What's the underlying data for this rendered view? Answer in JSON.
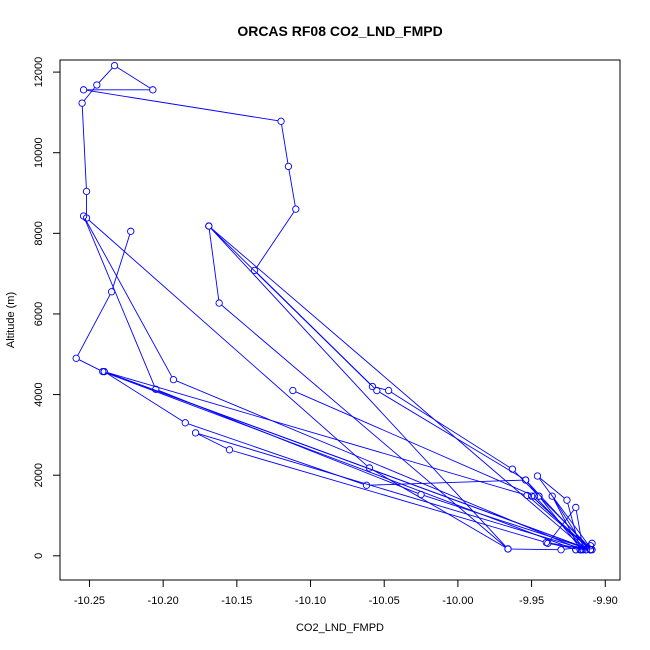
{
  "chart_data": {
    "type": "line",
    "title": "ORCAS RF08 CO2_LND_FMPD",
    "xlabel": "CO2_LND_FMPD",
    "ylabel": "Altitude (m)",
    "xlim": [
      -10.27,
      -9.89
    ],
    "ylim": [
      -600,
      12300
    ],
    "xticks": [
      -10.25,
      -10.2,
      -10.15,
      -10.1,
      -10.05,
      -10.0,
      -9.95,
      -9.9
    ],
    "xtick_labels": [
      "-10.25",
      "-10.20",
      "-10.15",
      "-10.10",
      "-10.05",
      "-10.00",
      "-9.95",
      "-9.90"
    ],
    "yticks": [
      0,
      2000,
      4000,
      6000,
      8000,
      10000,
      12000
    ],
    "ytick_labels": [
      "0",
      "2000",
      "4000",
      "6000",
      "8000",
      "10000",
      "12000"
    ],
    "grid": false,
    "color": "#0000ff",
    "series": [
      {
        "points": [
          [
            -10.222,
            8050
          ],
          [
            -10.235,
            6550
          ],
          [
            -10.259,
            4900
          ],
          [
            -10.241,
            4570
          ],
          [
            -9.92,
            150
          ],
          [
            -9.909,
            310
          ],
          [
            -9.915,
            150
          ],
          [
            -9.92,
            1200
          ],
          [
            -9.939,
            310
          ],
          [
            -9.917,
            150
          ],
          [
            -9.926,
            1380
          ],
          [
            -9.946,
            1980
          ],
          [
            -9.909,
            150
          ],
          [
            -9.945,
            1480
          ],
          [
            -9.954,
            1880
          ],
          [
            -10.062,
            1750
          ],
          [
            -10.185,
            3300
          ],
          [
            -10.24,
            4570
          ],
          [
            -9.91,
            150
          ],
          [
            -9.94,
            330
          ],
          [
            -10.155,
            2630
          ],
          [
            -10.178,
            3050
          ],
          [
            -9.913,
            150
          ],
          [
            -9.936,
            1480
          ],
          [
            -9.917,
            150
          ],
          [
            -9.91,
            150
          ],
          [
            -9.953,
            1500
          ],
          [
            -10.24,
            4570
          ],
          [
            -9.91,
            150
          ],
          [
            -10.025,
            1520
          ],
          [
            -10.205,
            4130
          ],
          [
            -10.254,
            8430
          ],
          [
            -10.193,
            4370
          ],
          [
            -9.916,
            150
          ],
          [
            -9.945,
            1480
          ],
          [
            -9.963,
            2150
          ],
          [
            -10.047,
            4100
          ],
          [
            -10.058,
            4200
          ],
          [
            -10.169,
            8180
          ],
          [
            -9.966,
            170
          ],
          [
            -10.06,
            2180
          ],
          [
            -10.252,
            8380
          ],
          [
            -10.252,
            9040
          ],
          [
            -10.255,
            11230
          ],
          [
            -10.245,
            11680
          ],
          [
            -10.233,
            12160
          ],
          [
            -10.207,
            11560
          ],
          [
            -10.254,
            11560
          ],
          [
            -10.12,
            10780
          ],
          [
            -10.115,
            9660
          ],
          [
            -10.11,
            8600
          ],
          [
            -10.138,
            7080
          ],
          [
            -10.055,
            4100
          ],
          [
            -9.954,
            1880
          ],
          [
            -9.91,
            150
          ],
          [
            -9.95,
            1480
          ],
          [
            -9.91,
            150
          ],
          [
            -9.92,
            150
          ],
          [
            -9.91,
            250
          ],
          [
            -9.93,
            150
          ],
          [
            -9.966,
            170
          ],
          [
            -10.162,
            6270
          ],
          [
            -10.169,
            8180
          ],
          [
            -9.913,
            150
          ],
          [
            -9.948,
            1480
          ],
          [
            -10.112,
            4100
          ]
        ]
      }
    ]
  }
}
